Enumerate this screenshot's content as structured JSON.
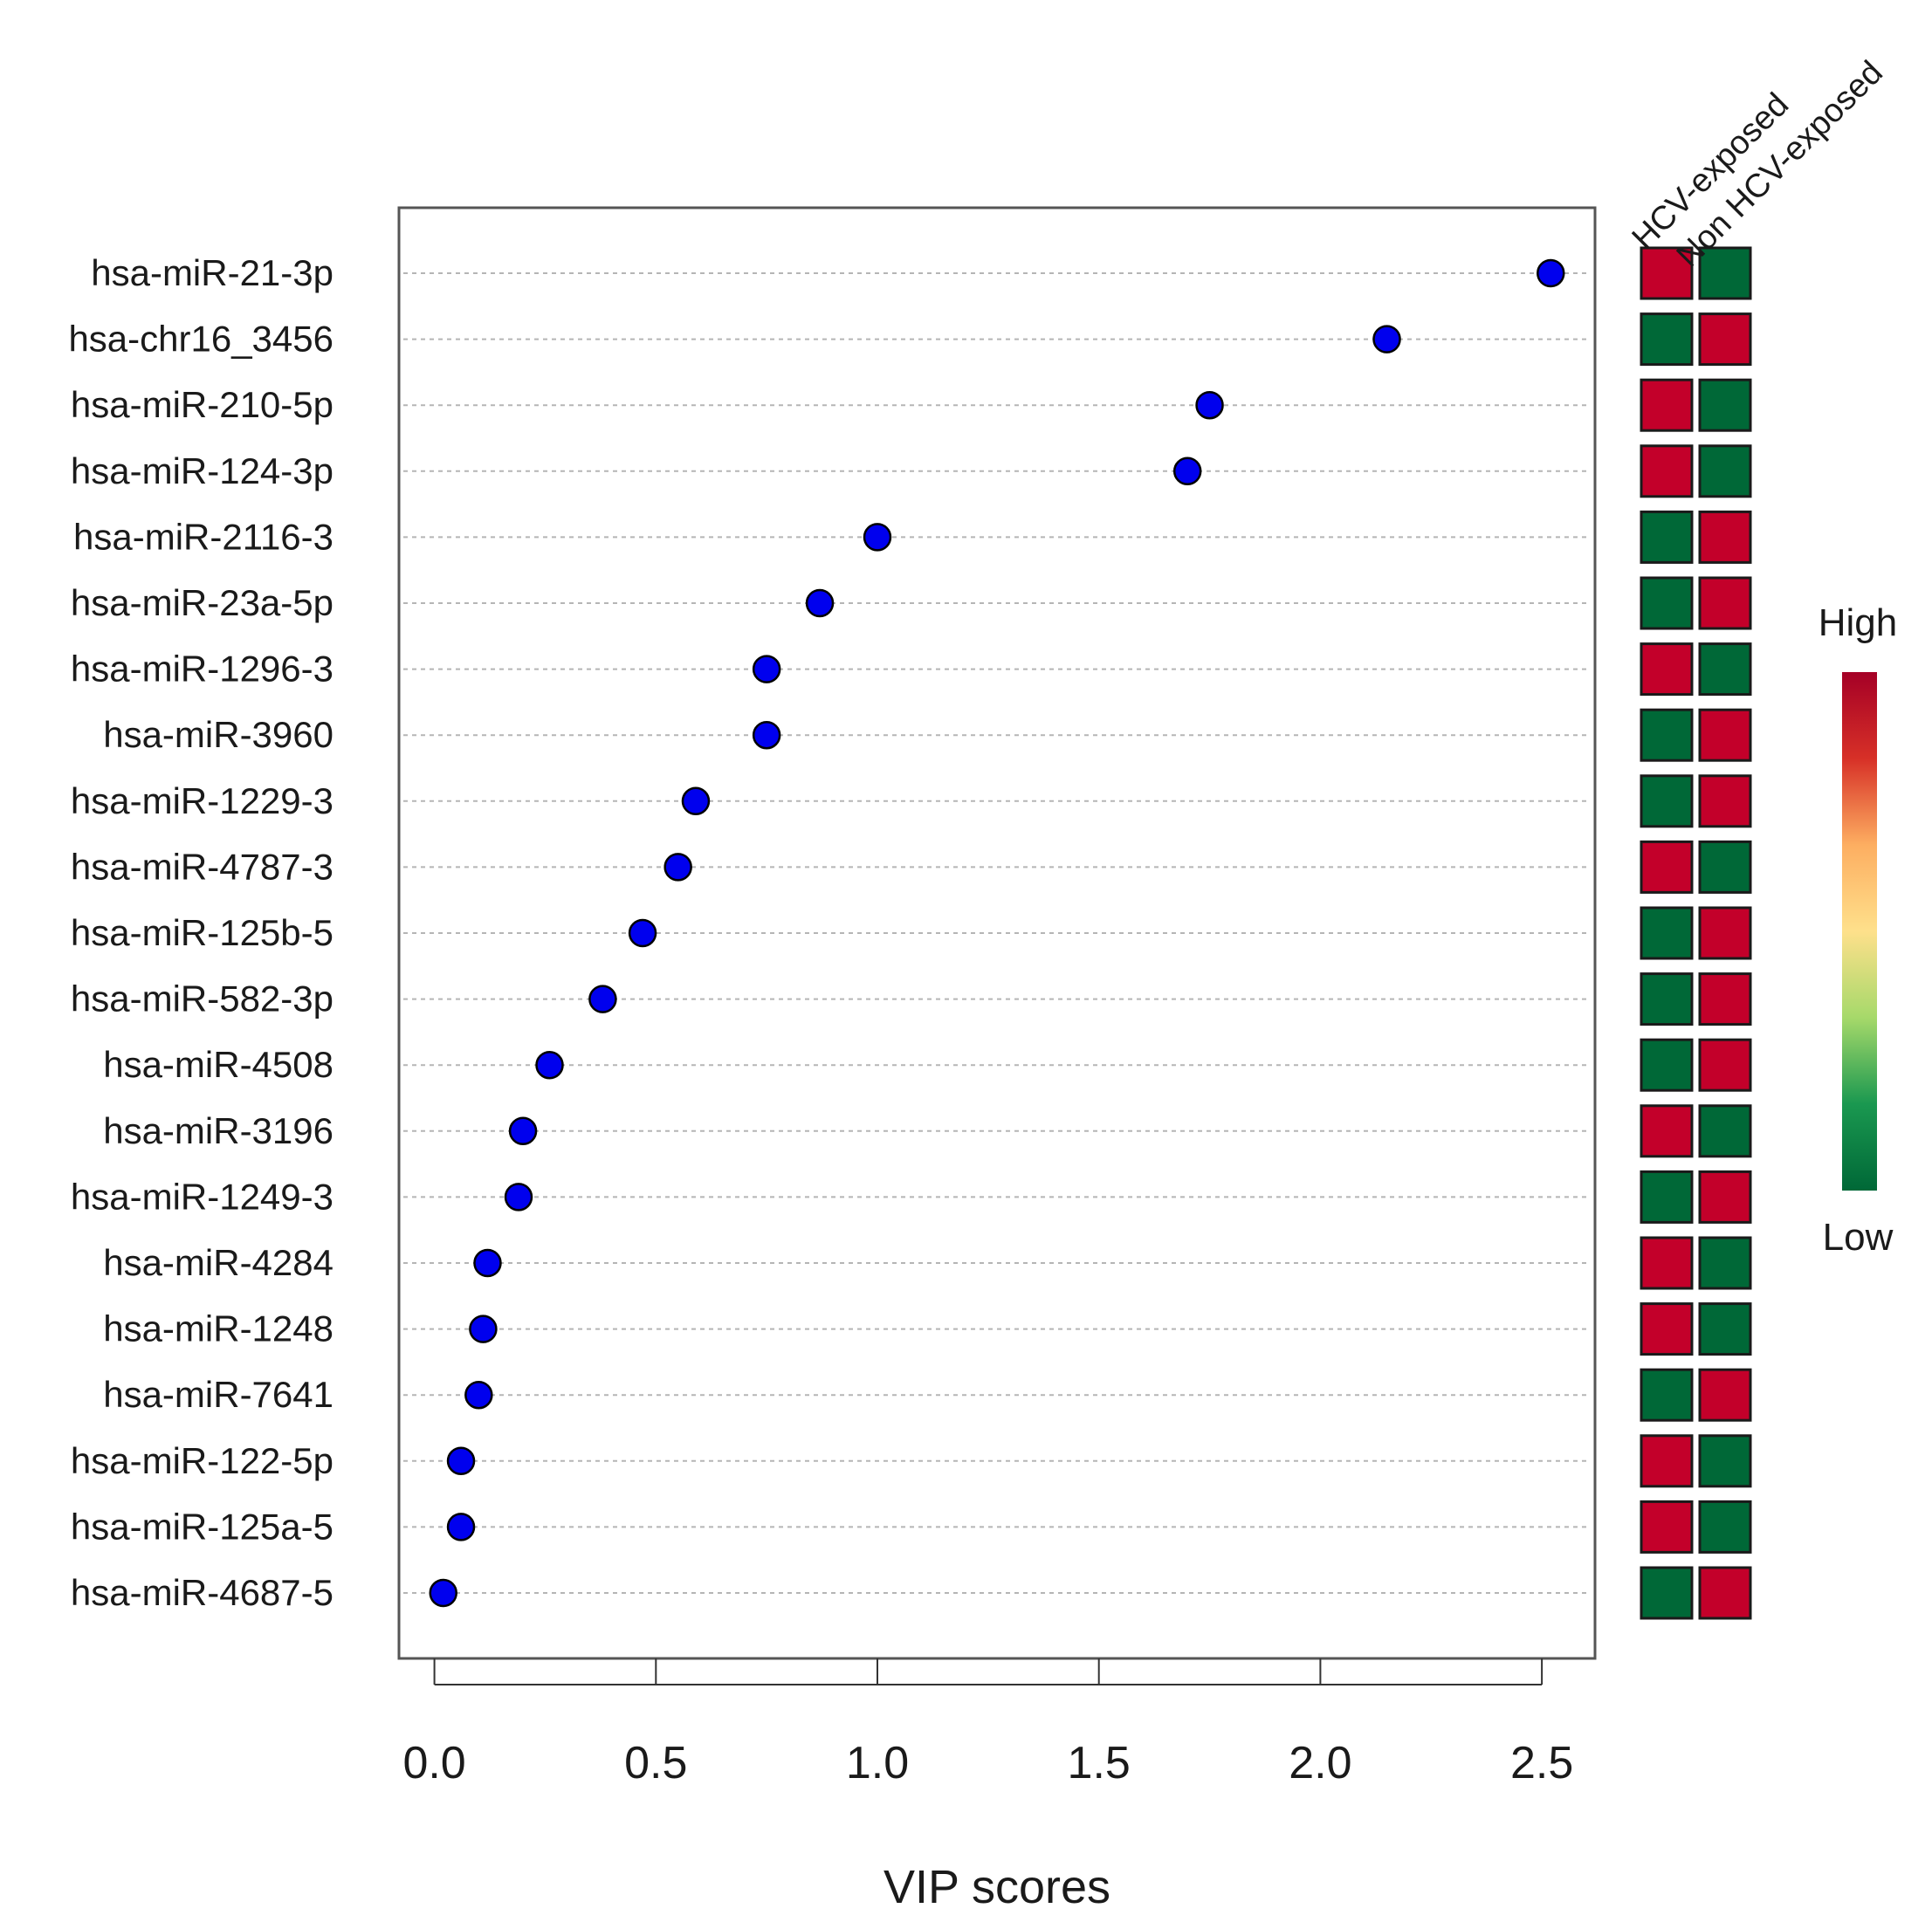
{
  "chart_data": {
    "type": "scatter",
    "xlabel": "VIP scores",
    "xlim": [
      -0.08,
      2.62
    ],
    "xticks": [
      "0.0",
      "0.5",
      "1.0",
      "1.5",
      "2.0",
      "2.5"
    ],
    "grid": true,
    "points": [
      {
        "name": "hsa-miR-21-3p",
        "vip": 2.52,
        "groups": [
          "High",
          "Low"
        ]
      },
      {
        "name": "hsa-chr16_3456",
        "vip": 2.15,
        "groups": [
          "Low",
          "High"
        ]
      },
      {
        "name": "hsa-miR-210-5p",
        "vip": 1.75,
        "groups": [
          "High",
          "Low"
        ]
      },
      {
        "name": "hsa-miR-124-3p",
        "vip": 1.7,
        "groups": [
          "High",
          "Low"
        ]
      },
      {
        "name": "hsa-miR-2116-3",
        "vip": 1.0,
        "groups": [
          "Low",
          "High"
        ]
      },
      {
        "name": "hsa-miR-23a-5p",
        "vip": 0.87,
        "groups": [
          "Low",
          "High"
        ]
      },
      {
        "name": "hsa-miR-1296-3",
        "vip": 0.75,
        "groups": [
          "High",
          "Low"
        ]
      },
      {
        "name": "hsa-miR-3960",
        "vip": 0.75,
        "groups": [
          "Low",
          "High"
        ]
      },
      {
        "name": "hsa-miR-1229-3",
        "vip": 0.59,
        "groups": [
          "Low",
          "High"
        ]
      },
      {
        "name": "hsa-miR-4787-3",
        "vip": 0.55,
        "groups": [
          "High",
          "Low"
        ]
      },
      {
        "name": "hsa-miR-125b-5",
        "vip": 0.47,
        "groups": [
          "Low",
          "High"
        ]
      },
      {
        "name": "hsa-miR-582-3p",
        "vip": 0.38,
        "groups": [
          "Low",
          "High"
        ]
      },
      {
        "name": "hsa-miR-4508",
        "vip": 0.26,
        "groups": [
          "Low",
          "High"
        ]
      },
      {
        "name": "hsa-miR-3196",
        "vip": 0.2,
        "groups": [
          "High",
          "Low"
        ]
      },
      {
        "name": "hsa-miR-1249-3",
        "vip": 0.19,
        "groups": [
          "Low",
          "High"
        ]
      },
      {
        "name": "hsa-miR-4284",
        "vip": 0.12,
        "groups": [
          "High",
          "Low"
        ]
      },
      {
        "name": "hsa-miR-1248",
        "vip": 0.11,
        "groups": [
          "High",
          "Low"
        ]
      },
      {
        "name": "hsa-miR-7641",
        "vip": 0.1,
        "groups": [
          "Low",
          "High"
        ]
      },
      {
        "name": "hsa-miR-122-5p",
        "vip": 0.06,
        "groups": [
          "High",
          "Low"
        ]
      },
      {
        "name": "hsa-miR-125a-5",
        "vip": 0.06,
        "groups": [
          "High",
          "Low"
        ]
      },
      {
        "name": "hsa-miR-4687-5",
        "vip": 0.02,
        "groups": [
          "Low",
          "High"
        ]
      }
    ],
    "heatmap_columns": [
      "HCV-exposed",
      "Non HCV-exposed"
    ],
    "legend": {
      "high": "High",
      "low": "Low",
      "placement": "right"
    },
    "colors": {
      "point": "#0000ee",
      "high": "#c3002a",
      "low": "#006837",
      "gradient": [
        "#006837",
        "#1a9850",
        "#a6d96a",
        "#fee08b",
        "#fdae61",
        "#d73027",
        "#a50026"
      ]
    }
  }
}
